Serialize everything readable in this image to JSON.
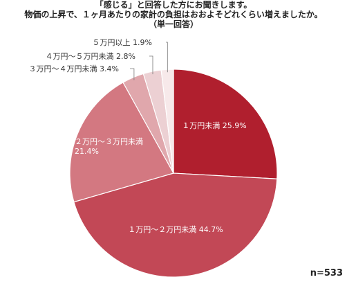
{
  "title_lines": [
    "「感じる」と回答した方にお聞きします。",
    "物価の上昇で、１ヶ月あたりの家計の負担はおおよそどれくらい増えましたか。",
    "（単一回答）"
  ],
  "note": "n=533",
  "chart_data": {
    "type": "pie",
    "slices": [
      {
        "label": "１万円未満",
        "value": 25.9,
        "value_text": "25.9%",
        "color": "#b01f2e",
        "label_color": "#ffffff"
      },
      {
        "label": "１万円～２万円未満",
        "value": 44.7,
        "value_text": "44.7%",
        "color": "#c24856",
        "label_color": "#ffffff"
      },
      {
        "label": "２万円～３万円未満",
        "value": 21.4,
        "value_text": "21.4%",
        "color": "#d37881",
        "label_color": "#ffffff"
      },
      {
        "label": "３万円～４万円未満",
        "value": 3.4,
        "value_text": "3.4%",
        "color": "#e0a7ac",
        "label_color": "#333333"
      },
      {
        "label": "４万円～５万円未満",
        "value": 2.8,
        "value_text": "2.8%",
        "color": "#ecd0d3",
        "label_color": "#333333"
      },
      {
        "label": "５万円以上",
        "value": 1.9,
        "value_text": "1.9%",
        "color": "#f7e9ea",
        "label_color": "#333333"
      }
    ]
  }
}
